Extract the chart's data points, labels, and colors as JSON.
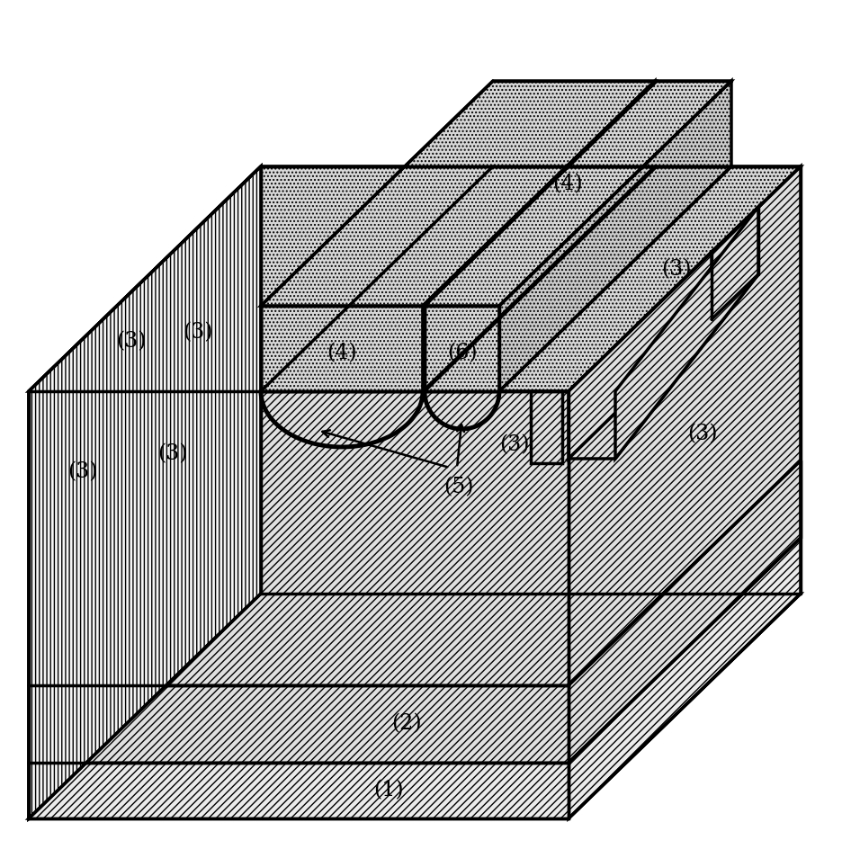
{
  "bg": "#ffffff",
  "lc": "#000000",
  "lw": 2.5,
  "fs": 17,
  "dot_fc": "#d8d8d8",
  "diag_fc": "#e0e0e0",
  "vert_fc": "#f5f5f5",
  "diag_fc2": "#ebebeb",
  "labels": [
    "(1)",
    "(2)",
    "(3)",
    "(4)",
    "(5)",
    "(6)"
  ]
}
